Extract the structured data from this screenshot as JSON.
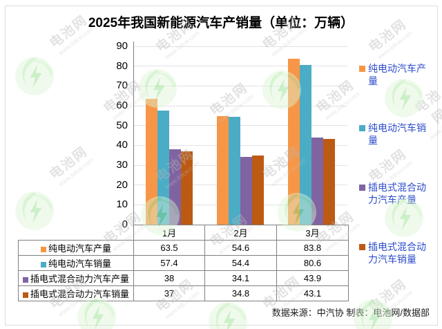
{
  "title": "2025年我国新能源汽车产销量（单位：万辆）",
  "chart_data": {
    "type": "bar",
    "title": "2025年我国新能源汽车产销量（单位：万辆）",
    "categories": [
      "1月",
      "2月",
      "3月"
    ],
    "series": [
      {
        "name": "纯电动汽车产量",
        "color": "#F79646",
        "values": [
          63.5,
          54.6,
          83.8
        ]
      },
      {
        "name": "纯电动汽车销量",
        "color": "#4BACC6",
        "values": [
          57.4,
          54.4,
          80.6
        ]
      },
      {
        "name": "插电式混合动力汽车产量",
        "color": "#8064A2",
        "values": [
          38,
          34.1,
          43.9
        ]
      },
      {
        "name": "插电式混合动力汽车销量",
        "color": "#BC5A14",
        "values": [
          37,
          34.8,
          43.1
        ]
      }
    ],
    "ylim": [
      0,
      90
    ],
    "yticks": [
      0,
      10,
      20,
      30,
      40,
      50,
      60,
      70,
      80,
      90
    ],
    "grid": true,
    "legend_position": "right",
    "data_table_shown": true
  },
  "footer": {
    "source_text": "数据来源：中汽协  制表：电池网/数据部"
  },
  "watermark": {
    "brand": "电池网",
    "url": "www.itdcw.com"
  }
}
